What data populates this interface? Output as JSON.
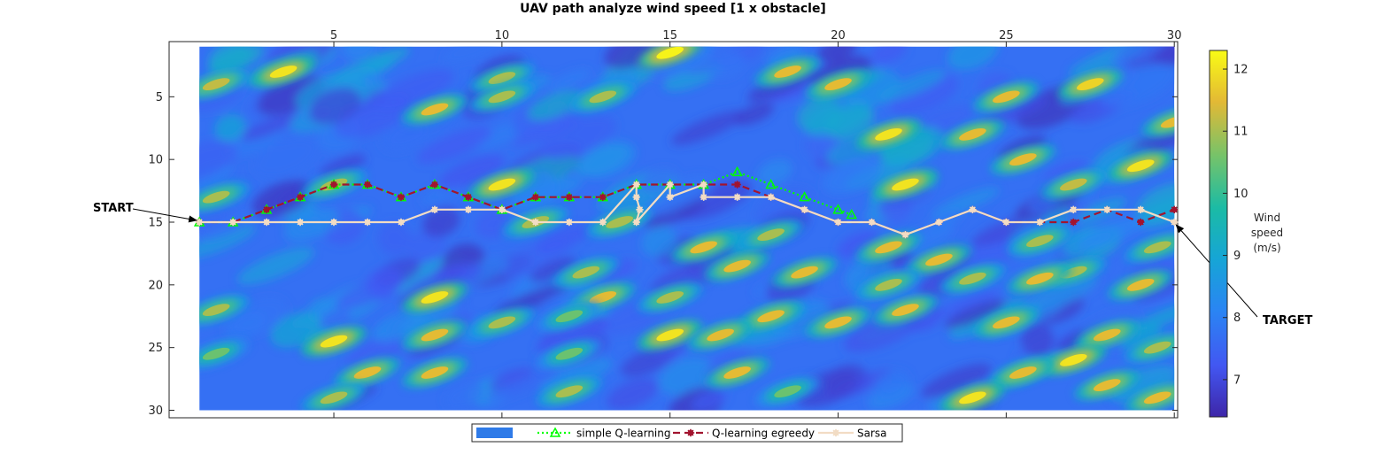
{
  "chart_data": {
    "type": "heatmap",
    "title": "UAV path analyze wind speed [1 x obstacle]",
    "x_axis": {
      "range": [
        0.1,
        30.1
      ],
      "ticks": [
        5,
        10,
        15,
        20,
        25,
        30
      ],
      "position": "top"
    },
    "y_axis": {
      "range": [
        0.6,
        30.6
      ],
      "ticks": [
        5,
        10,
        15,
        20,
        25,
        30
      ],
      "reversed": true
    },
    "heatmap": {
      "extent": {
        "x": [
          1,
          30
        ],
        "y": [
          1,
          30
        ]
      },
      "colorbar": {
        "label": "Wind speed (m/s)",
        "ticks": [
          7,
          8,
          9,
          10,
          11,
          12
        ],
        "range": [
          6.4,
          12.3
        ]
      },
      "bright_spots": [
        {
          "x": 15.0,
          "y": 1.5,
          "v": 12.2
        },
        {
          "x": 3.5,
          "y": 3.0,
          "v": 12.0
        },
        {
          "x": 10.0,
          "y": 3.5,
          "v": 11.0
        },
        {
          "x": 18.5,
          "y": 3.0,
          "v": 11.5
        },
        {
          "x": 20.0,
          "y": 4.0,
          "v": 11.5
        },
        {
          "x": 1.5,
          "y": 4.0,
          "v": 11.2
        },
        {
          "x": 27.5,
          "y": 4.0,
          "v": 11.8
        },
        {
          "x": 13.0,
          "y": 5.0,
          "v": 11.0
        },
        {
          "x": 25.0,
          "y": 5.0,
          "v": 11.5
        },
        {
          "x": 10.0,
          "y": 5.0,
          "v": 11.0
        },
        {
          "x": 8.0,
          "y": 6.0,
          "v": 11.5
        },
        {
          "x": 21.5,
          "y": 8.0,
          "v": 12.0
        },
        {
          "x": 24.0,
          "y": 8.0,
          "v": 11.5
        },
        {
          "x": 30.0,
          "y": 7.0,
          "v": 11.5
        },
        {
          "x": 25.5,
          "y": 10.0,
          "v": 11.5
        },
        {
          "x": 29.0,
          "y": 10.5,
          "v": 12.0
        },
        {
          "x": 5.0,
          "y": 12.0,
          "v": 11.0
        },
        {
          "x": 10.0,
          "y": 12.0,
          "v": 12.0
        },
        {
          "x": 22.0,
          "y": 12.0,
          "v": 12.0
        },
        {
          "x": 27.0,
          "y": 12.0,
          "v": 11.2
        },
        {
          "x": 1.5,
          "y": 13.0,
          "v": 11.0
        },
        {
          "x": 13.5,
          "y": 15.0,
          "v": 11.0
        },
        {
          "x": 18.0,
          "y": 16.0,
          "v": 11.0
        },
        {
          "x": 11.0,
          "y": 15.0,
          "v": 11.0
        },
        {
          "x": 16.0,
          "y": 17.0,
          "v": 11.5
        },
        {
          "x": 21.5,
          "y": 17.0,
          "v": 11.5
        },
        {
          "x": 26.0,
          "y": 16.5,
          "v": 11.0
        },
        {
          "x": 29.5,
          "y": 17.0,
          "v": 11.0
        },
        {
          "x": 17.0,
          "y": 18.5,
          "v": 11.5
        },
        {
          "x": 19.0,
          "y": 19.0,
          "v": 11.5
        },
        {
          "x": 23.0,
          "y": 18.0,
          "v": 11.5
        },
        {
          "x": 27.0,
          "y": 19.0,
          "v": 11.0
        },
        {
          "x": 12.5,
          "y": 19.0,
          "v": 11.0
        },
        {
          "x": 21.5,
          "y": 20.0,
          "v": 11.0
        },
        {
          "x": 24.0,
          "y": 19.5,
          "v": 11.0
        },
        {
          "x": 26.0,
          "y": 19.5,
          "v": 11.5
        },
        {
          "x": 29.0,
          "y": 20.0,
          "v": 11.5
        },
        {
          "x": 8.0,
          "y": 21.0,
          "v": 12.0
        },
        {
          "x": 13.0,
          "y": 21.0,
          "v": 11.5
        },
        {
          "x": 15.0,
          "y": 21.0,
          "v": 11.0
        },
        {
          "x": 1.5,
          "y": 22.0,
          "v": 11.0
        },
        {
          "x": 18.0,
          "y": 22.5,
          "v": 11.5
        },
        {
          "x": 22.0,
          "y": 22.0,
          "v": 11.5
        },
        {
          "x": 10.0,
          "y": 23.0,
          "v": 11.0
        },
        {
          "x": 12.0,
          "y": 22.5,
          "v": 10.5
        },
        {
          "x": 20.0,
          "y": 23.0,
          "v": 11.5
        },
        {
          "x": 25.0,
          "y": 23.0,
          "v": 11.5
        },
        {
          "x": 8.0,
          "y": 24.0,
          "v": 11.5
        },
        {
          "x": 15.0,
          "y": 24.0,
          "v": 12.0
        },
        {
          "x": 16.5,
          "y": 24.0,
          "v": 11.5
        },
        {
          "x": 5.0,
          "y": 24.5,
          "v": 12.0
        },
        {
          "x": 28.0,
          "y": 24.0,
          "v": 11.5
        },
        {
          "x": 12.0,
          "y": 25.5,
          "v": 10.5
        },
        {
          "x": 29.5,
          "y": 25.0,
          "v": 11.0
        },
        {
          "x": 1.5,
          "y": 25.5,
          "v": 10.5
        },
        {
          "x": 27.0,
          "y": 26.0,
          "v": 12.0
        },
        {
          "x": 25.5,
          "y": 27.0,
          "v": 11.5
        },
        {
          "x": 8.0,
          "y": 27.0,
          "v": 11.5
        },
        {
          "x": 6.0,
          "y": 27.0,
          "v": 11.5
        },
        {
          "x": 17.0,
          "y": 27.0,
          "v": 11.5
        },
        {
          "x": 28.0,
          "y": 28.0,
          "v": 11.5
        },
        {
          "x": 5.0,
          "y": 29.0,
          "v": 11.0
        },
        {
          "x": 12.0,
          "y": 28.5,
          "v": 11.0
        },
        {
          "x": 18.5,
          "y": 28.5,
          "v": 10.5
        },
        {
          "x": 24.0,
          "y": 29.0,
          "v": 12.0
        },
        {
          "x": 29.5,
          "y": 29.0,
          "v": 11.5
        }
      ]
    },
    "series": [
      {
        "name": "simple Q-learning",
        "color": "#00ff00",
        "style": "dotted",
        "marker": "triangle",
        "x": [
          1,
          2,
          3,
          4,
          5,
          6,
          7,
          8,
          9,
          10,
          11,
          12,
          13,
          14,
          15,
          16,
          17,
          18,
          19,
          20,
          20.4
        ],
        "y": [
          15,
          15,
          14,
          13,
          12,
          12,
          13,
          12,
          13,
          14,
          13,
          13,
          13,
          12,
          12,
          12,
          11,
          12,
          13,
          14,
          14.4
        ]
      },
      {
        "name": "Q-learning egreedy",
        "color": "#a2142f",
        "style": "dashed",
        "marker": "star",
        "x": [
          1,
          2,
          3,
          4,
          5,
          6,
          7,
          8,
          9,
          10,
          11,
          12,
          13,
          14,
          15,
          16,
          17,
          18,
          19,
          20,
          21,
          22,
          23,
          24,
          25,
          26,
          27,
          28,
          29,
          30
        ],
        "y": [
          15,
          15,
          14,
          13,
          12,
          12,
          13,
          12,
          13,
          14,
          13,
          13,
          13,
          12,
          12,
          12,
          12,
          13,
          14,
          15,
          15,
          16,
          15,
          14,
          15,
          15,
          15,
          14,
          15,
          14
        ]
      },
      {
        "name": "Sarsa",
        "color": "#f2dcc4",
        "style": "solid",
        "marker": "star",
        "x": [
          1,
          2,
          3,
          4,
          5,
          6,
          7,
          8,
          9,
          10,
          11,
          12,
          13,
          14,
          14,
          14.1,
          14,
          15,
          15,
          16,
          16,
          17,
          18,
          19,
          20,
          21,
          22,
          23,
          24,
          25,
          26,
          27,
          28,
          29,
          30
        ],
        "y": [
          15,
          15,
          15,
          15,
          15,
          15,
          15,
          14,
          14,
          14,
          15,
          15,
          15,
          12,
          13,
          14,
          15,
          12,
          13,
          12,
          13,
          13,
          13,
          14,
          15,
          15,
          16,
          15,
          14,
          15,
          15,
          14,
          14,
          14,
          15
        ]
      }
    ],
    "annotations": [
      {
        "text": "START",
        "target": {
          "x": 1,
          "y": 15
        }
      },
      {
        "text": "TARGET",
        "target": {
          "x": 30,
          "y": 15
        }
      }
    ],
    "legend": {
      "placement": "bottom-center",
      "entries": [
        "simple Q-learning",
        "Q-learning egreedy",
        "Sarsa"
      ]
    }
  }
}
